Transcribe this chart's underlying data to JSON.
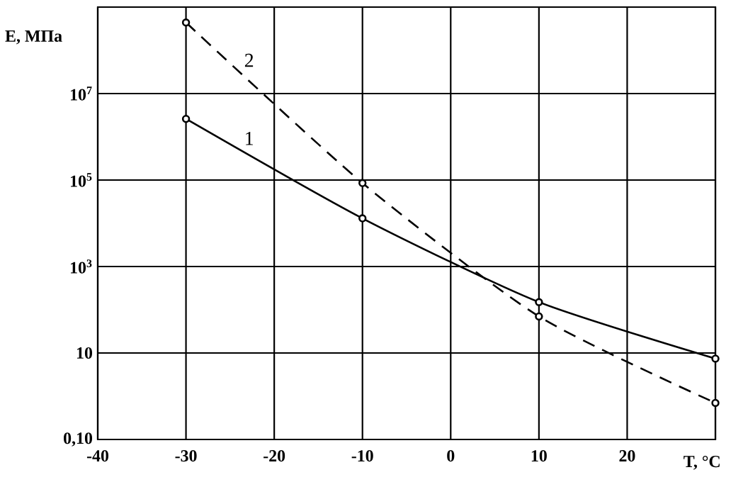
{
  "chart_data": {
    "type": "line",
    "xlabel": "T,  °C",
    "ylabel": "E, МПа",
    "log": "y",
    "grid": true,
    "marker": "circle",
    "xlim": [
      -40,
      30
    ],
    "xticks": [
      -40,
      -30,
      -20,
      -10,
      0,
      10,
      20,
      {
        "value": 30,
        "label": null
      }
    ],
    "ylim": [
      0.1,
      1000000000
    ],
    "yticks": [
      {
        "value": 0.1,
        "label": "0,10"
      },
      10,
      {
        "value": 1000,
        "label": "10$^{3}$"
      },
      {
        "value": 100000,
        "label": "10$^{5}$"
      },
      {
        "value": 10000000,
        "label": "10$^{7}$"
      }
    ],
    "x": [
      -30,
      -10,
      10,
      30
    ],
    "series": [
      {
        "name": "1",
        "color": "#000000",
        "line_style": "solid",
        "values": [
          2600000,
          13000,
          150,
          7.4
        ]
      },
      {
        "name": "2",
        "color": "#000000",
        "line_style": "dashed",
        "values": [
          440000000,
          85000,
          70,
          0.7
        ]
      }
    ]
  }
}
